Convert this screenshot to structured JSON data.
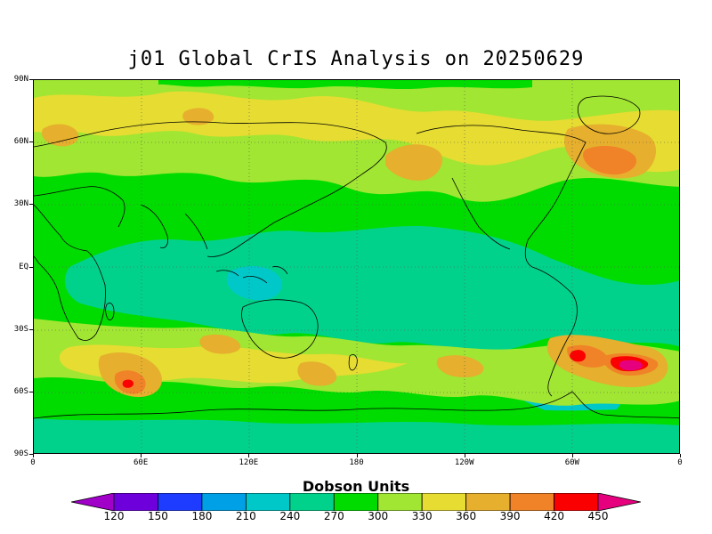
{
  "title": "j01 Global CrIS Analysis on 20250629",
  "map": {
    "lat_labels": [
      "90N",
      "60N",
      "30N",
      "EQ",
      "30S",
      "60S",
      "90S"
    ],
    "lat_values": [
      90,
      60,
      30,
      0,
      -30,
      -60,
      -90
    ],
    "lon_labels": [
      "0",
      "60E",
      "120E",
      "180",
      "120W",
      "60W",
      "0"
    ],
    "lon_values": [
      0,
      60,
      120,
      180,
      240,
      300,
      360
    ],
    "grid": true,
    "projection": "cylindrical equidistant, 0 to 360"
  },
  "colorbar": {
    "title": "Dobson Units",
    "levels": [
      120,
      150,
      180,
      210,
      240,
      270,
      300,
      330,
      360,
      390,
      420,
      450
    ],
    "colors": [
      "#a000c8",
      "#6e00dc",
      "#1e3cff",
      "#00a0e6",
      "#00c8c8",
      "#00d28c",
      "#00dc00",
      "#a0e632",
      "#e6dc32",
      "#e6af2d",
      "#f08228",
      "#fa0000",
      "#e6007e"
    ],
    "labels": [
      "120",
      "150",
      "180",
      "210",
      "240",
      "270",
      "300",
      "330",
      "360",
      "390",
      "420",
      "450"
    ]
  },
  "colors": {
    "background_field": "#00dc00",
    "tropical_field": "#00d28c",
    "low_field": "#00c8c8"
  }
}
